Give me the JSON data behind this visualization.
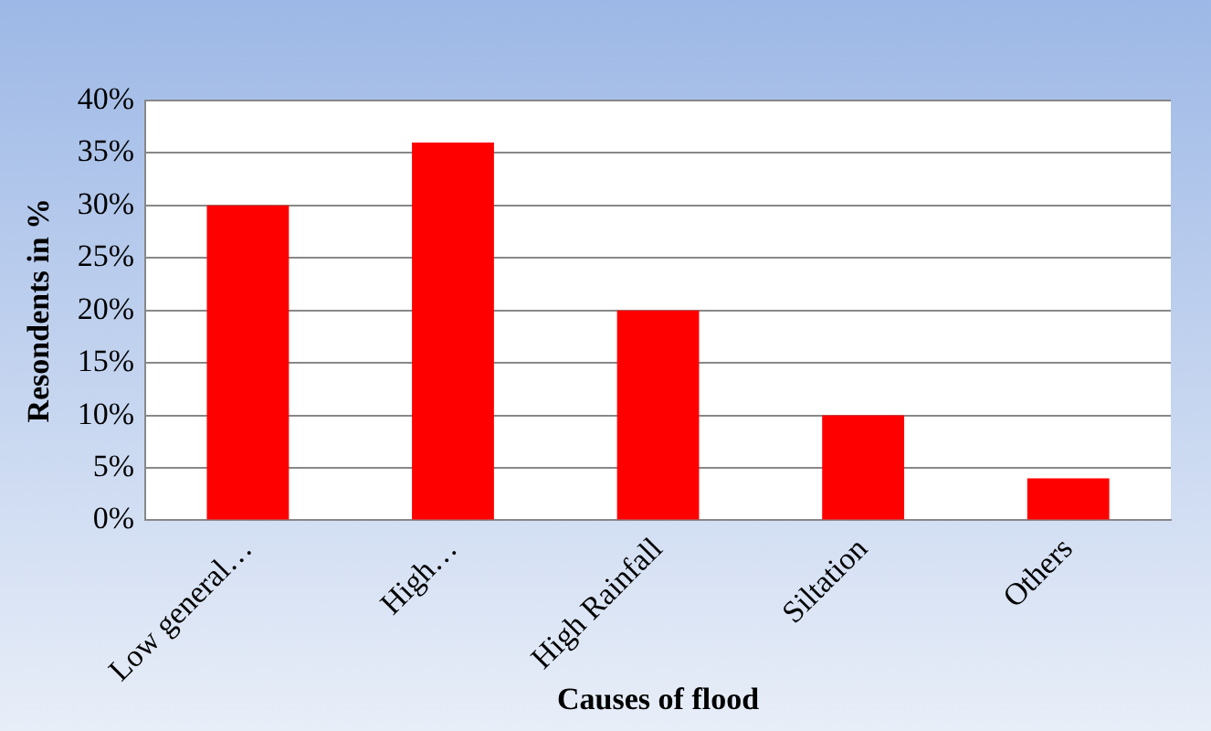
{
  "chart_data": {
    "type": "bar",
    "xlabel": "Causes of flood",
    "ylabel": "Resondents in %",
    "categories": [
      "Low general…",
      "High…",
      "High Rainfall",
      "Siltation",
      "Others"
    ],
    "values": [
      30,
      36,
      20,
      10,
      4
    ],
    "color": "#ff0000",
    "ylim": [
      0,
      40
    ],
    "yticks": [
      {
        "value": 0,
        "label": "0%"
      },
      {
        "value": 5,
        "label": "5%"
      },
      {
        "value": 10,
        "label": "10%"
      },
      {
        "value": 15,
        "label": "15%"
      },
      {
        "value": 20,
        "label": "20%"
      },
      {
        "value": 25,
        "label": "25%"
      },
      {
        "value": 30,
        "label": "30%"
      },
      {
        "value": 35,
        "label": "35%"
      },
      {
        "value": 40,
        "label": "40%"
      }
    ],
    "grid": "y",
    "legend": false
  }
}
